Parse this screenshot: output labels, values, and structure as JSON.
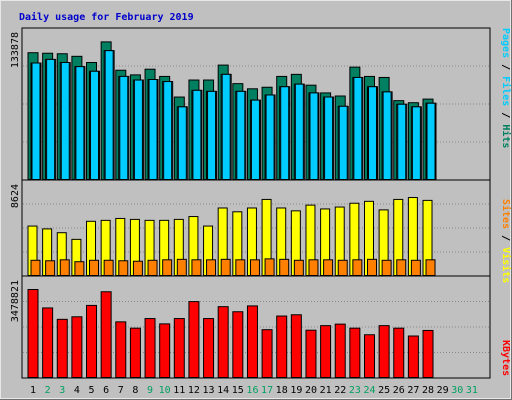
{
  "colors": {
    "page_bg": "#c0c0c0",
    "title": "#0000cc",
    "hits": "#008060",
    "files": "#00ccff",
    "pages": "#00ccff",
    "visits": "#ffff00",
    "sites": "#ff8000",
    "kbytes": "#ff0000",
    "weekend_day": "#00a060",
    "weekday": "#000000",
    "grid": "#8a8a8a"
  },
  "chart_data": {
    "type": "bar",
    "title": "Daily usage for February 2019",
    "categories": [
      "1",
      "2",
      "3",
      "4",
      "5",
      "6",
      "7",
      "8",
      "9",
      "10",
      "11",
      "12",
      "13",
      "14",
      "15",
      "16",
      "17",
      "18",
      "19",
      "20",
      "21",
      "22",
      "23",
      "24",
      "25",
      "26",
      "27",
      "28",
      "29",
      "30",
      "31"
    ],
    "weekend_days": [
      2,
      3,
      9,
      10,
      16,
      17,
      23,
      24,
      30,
      31
    ],
    "panels": [
      {
        "key": "top",
        "ytick": "133878",
        "ymax": 133878,
        "ylabel_parts": [
          {
            "text": "Pages",
            "color": "#00ccff"
          },
          {
            "text": " / ",
            "color": "#000000"
          },
          {
            "text": "Files",
            "color": "#00ccff"
          },
          {
            "text": " / ",
            "color": "#000000"
          },
          {
            "text": "Hits",
            "color": "#008060"
          }
        ],
        "series": [
          {
            "name": "Hits",
            "color": "#008060",
            "values": [
              123000,
              122500,
              122000,
              119500,
              113500,
              133500,
              106000,
              101500,
              107000,
              100000,
              80000,
              96500,
              96500,
              111000,
              93000,
              88000,
              89500,
              100000,
              102000,
              91500,
              84000,
              81000,
              109000,
              100000,
              99000,
              76500,
              74500,
              78000,
              null,
              null,
              null
            ]
          },
          {
            "name": "Files",
            "color": "#00ccff",
            "values": [
              113000,
              116500,
              113500,
              109500,
              105000,
              125000,
              100000,
              96500,
              97000,
              95000,
              70500,
              86500,
              85500,
              102000,
              85500,
              77000,
              82000,
              90000,
              92500,
              84000,
              80000,
              71000,
              99000,
              90000,
              85000,
              73000,
              70500,
              74000,
              null,
              null,
              null
            ]
          },
          {
            "name": "Pages",
            "color": "#00ccff",
            "values": [
              113000,
              116500,
              113500,
              109500,
              105000,
              125000,
              100000,
              96500,
              97000,
              95000,
              70500,
              86500,
              85500,
              102000,
              85500,
              77000,
              82000,
              90000,
              92500,
              84000,
              80000,
              71000,
              99000,
              90000,
              85000,
              73000,
              70500,
              74000,
              null,
              null,
              null
            ]
          }
        ]
      },
      {
        "key": "mid",
        "ytick": "8624",
        "ymax": 8624,
        "ylabel_parts": [
          {
            "text": "Sites",
            "color": "#ff8000"
          },
          {
            "text": " / ",
            "color": "#000000"
          },
          {
            "text": "Visits",
            "color": "#ffff00"
          }
        ],
        "series": [
          {
            "name": "Visits",
            "color": "#ffff00",
            "values": [
              5200,
              4900,
              4500,
              3800,
              5700,
              5800,
              6000,
              5900,
              5800,
              5800,
              5900,
              6200,
              5200,
              7100,
              6700,
              7100,
              8000,
              7100,
              6800,
              7400,
              7000,
              7200,
              7600,
              7800,
              6900,
              8000,
              8200,
              7900,
              null,
              null,
              null
            ]
          },
          {
            "name": "Sites",
            "color": "#ff8000",
            "values": [
              1600,
              1550,
              1650,
              1450,
              1600,
              1600,
              1550,
              1500,
              1600,
              1650,
              1700,
              1650,
              1650,
              1700,
              1650,
              1650,
              1750,
              1700,
              1600,
              1650,
              1650,
              1600,
              1650,
              1700,
              1600,
              1650,
              1600,
              1650,
              null,
              null,
              null
            ]
          }
        ]
      },
      {
        "key": "bottom",
        "ytick": "3478821",
        "ymax": 3478821,
        "ylabel_parts": [
          {
            "text": "KBytes",
            "color": "#ff0000"
          }
        ],
        "series": [
          {
            "name": "KBytes",
            "color": "#ff0000",
            "values": [
              3478821,
              2750000,
              2300000,
              2400000,
              2850000,
              3390000,
              2200000,
              1950000,
              2330000,
              2120000,
              2330000,
              3000000,
              2330000,
              2800000,
              2600000,
              2830000,
              1890000,
              2430000,
              2480000,
              1870000,
              2050000,
              2110000,
              1950000,
              1690000,
              2050000,
              1950000,
              1640000,
              1860000,
              null,
              null,
              null
            ]
          }
        ]
      }
    ]
  }
}
